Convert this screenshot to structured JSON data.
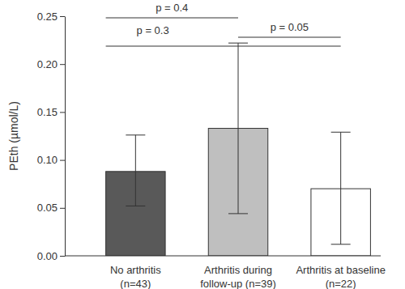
{
  "chart_data": {
    "type": "bar",
    "y_label": "PEth (µmol/L)",
    "categories": [
      "No arthritis\n(n=43)",
      "Arthritis during\nfollow-up (n=39)",
      "Arthritis at baseline\n(n=22)"
    ],
    "values": [
      0.088,
      0.133,
      0.07
    ],
    "whisker_low": [
      0.052,
      0.044,
      0.012
    ],
    "whisker_high": [
      0.126,
      0.222,
      0.129
    ],
    "colors": [
      "#595959",
      "#bfbfbf",
      "#ffffff"
    ],
    "ylim": [
      0,
      0.25
    ],
    "yticks": [
      {
        "value": 0,
        "label": "0.00"
      },
      {
        "value": 0.05,
        "label": "0.05"
      },
      {
        "value": 0.1,
        "label": "0.10"
      },
      {
        "value": 0.15,
        "label": "0.15"
      },
      {
        "value": 0.2,
        "label": "0.20"
      },
      {
        "value": 0.25,
        "label": "0.25"
      }
    ],
    "comparisons": [
      {
        "from": 0,
        "to": 1,
        "label": "p = 0.4"
      },
      {
        "from": 0,
        "to": 2,
        "label": "p = 0.3"
      },
      {
        "from": 1,
        "to": 2,
        "label": "p = 0.05"
      }
    ],
    "grid": false
  }
}
